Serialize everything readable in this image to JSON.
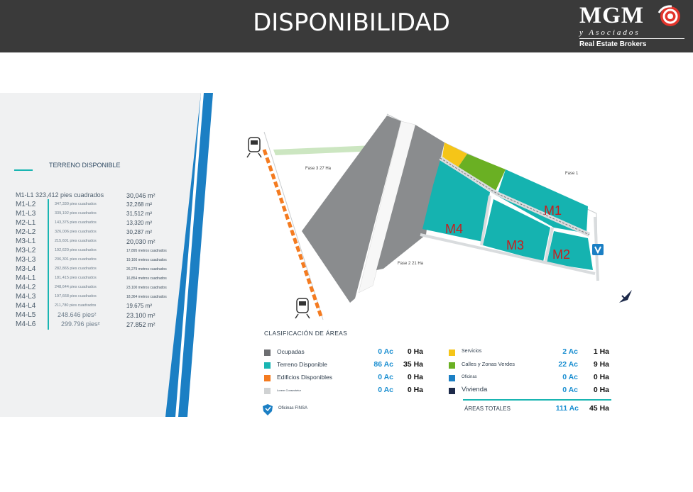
{
  "header": {
    "title": "DISPONIBILIDAD",
    "logo_brand": "MGM",
    "logo_sub": "y Asociados",
    "logo_tag": "Real Estate Brokers"
  },
  "availability": {
    "heading": "TERRENO DISPONIBLE",
    "lots": [
      {
        "code": "M1-L1 323,412 pies cuadrados",
        "feet": "",
        "meters": "30,046 m²"
      },
      {
        "code": "M1-L2",
        "feet": "347,330 pies cuadrados",
        "meters": "32,268 m²"
      },
      {
        "code": "M1-L3",
        "feet": "339,192 pies cuadrados",
        "meters": "31,512 m²"
      },
      {
        "code": "M2-L1",
        "feet": "143,375 pies cuadrados",
        "meters": "13,320 m²"
      },
      {
        "code": "M2-L2",
        "feet": "326,006 pies cuadrados",
        "meters": "30,287 m²"
      },
      {
        "code": "M3-L1",
        "feet": "215,601 pies cuadrados",
        "meters": "20,030 m²"
      },
      {
        "code": "M3-L2",
        "feet": "192,620 pies cuadrados",
        "meters": "17,895 metros cuadrados"
      },
      {
        "code": "M3-L3",
        "feet": "206,301 pies cuadrados",
        "meters": "19,166 metros cuadrados"
      },
      {
        "code": "M3-L4",
        "feet": "282,865 pies cuadrados",
        "meters": "26,279 metros cuadrados"
      },
      {
        "code": "M4-L1",
        "feet": "181,415 pies cuadrados",
        "meters": "16,854 metros cuadrados"
      },
      {
        "code": "M4-L2",
        "feet": "248,644 pies cuadrados",
        "meters": "23,100 metros cuadrados"
      },
      {
        "code": "M4-L3",
        "feet": "197,668 pies cuadrados",
        "meters": "18,364 metros cuadrados"
      },
      {
        "code": "M4-L4",
        "feet": "211,780 pies cuadrados",
        "meters": "19.675 m²"
      },
      {
        "code": "M4-L5",
        "feet": "248.646 pies²",
        "meters": "23.100 m²"
      },
      {
        "code": "M4-L6",
        "feet": "299.796 pies²",
        "meters": "27.852 m²"
      }
    ]
  },
  "map": {
    "phase3": "Fase 3 27 Ha",
    "phase2": "Fase 2 21 Ha",
    "phase1": "Fase 1",
    "blocks": [
      "M1",
      "M2",
      "M3",
      "M4"
    ]
  },
  "legend": {
    "title": "CLASIFICACIÓN DE ÁREAS",
    "left": [
      {
        "label": "Ocupadas",
        "ac": "0 Ac",
        "ha": "0 Ha",
        "color": "#6d6e71"
      },
      {
        "label": "Terreno Disponible",
        "ac": "86 Ac",
        "ha": "35 Ha",
        "color": "#19b5b2"
      },
      {
        "label": "Edificios Disponibles",
        "ac": "0 Ac",
        "ha": "0 Ha",
        "color": "#f47b20"
      },
      {
        "label": "Lorem Consectetur",
        "ac": "0 Ac",
        "ha": "0 Ha",
        "color": "#d0d2d3"
      }
    ],
    "right": [
      {
        "label": "Servicios",
        "ac": "2 Ac",
        "ha": "1 Ha",
        "color": "#f5c518"
      },
      {
        "label": "Calles y Zonas Verdes",
        "ac": "22 Ac",
        "ha": "9 Ha",
        "color": "#6ab023"
      },
      {
        "label": "Oficinas",
        "ac": "0 Ac",
        "ha": "0 Ha",
        "color": "#1b7fc4"
      },
      {
        "label": "Vivienda",
        "ac": "0 Ac",
        "ha": "0 Ha",
        "color": "#1d2a4a"
      }
    ],
    "totals_label": "ÁREAS TOTALES",
    "totals_ac": "111 Ac",
    "totals_ha": "45 Ha",
    "finsa_label": "Oficinas FINSA"
  }
}
